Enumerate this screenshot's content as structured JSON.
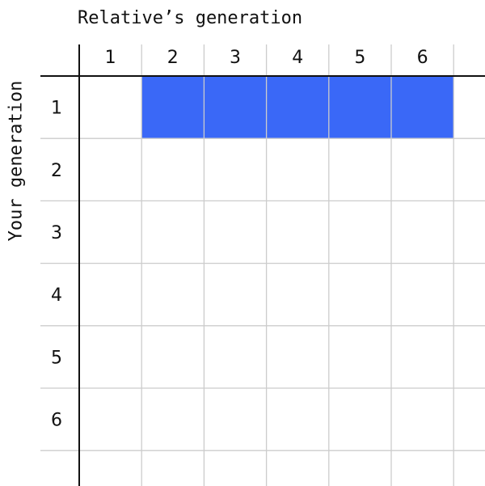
{
  "column_axis": {
    "title": "Relative’s generation",
    "labels": [
      "1",
      "2",
      "3",
      "4",
      "5",
      "6"
    ]
  },
  "row_axis": {
    "title": "Your generation",
    "labels": [
      "1",
      "2",
      "3",
      "4",
      "5",
      "6"
    ]
  },
  "highlighted_cells": [
    {
      "row": 1,
      "col": 2
    },
    {
      "row": 1,
      "col": 3
    },
    {
      "row": 1,
      "col": 4
    },
    {
      "row": 1,
      "col": 5
    },
    {
      "row": 1,
      "col": 6
    }
  ],
  "colors": {
    "highlight": "#3A68F7",
    "grid": "#CCCCCC",
    "axis": "#111111",
    "text": "#111111"
  }
}
